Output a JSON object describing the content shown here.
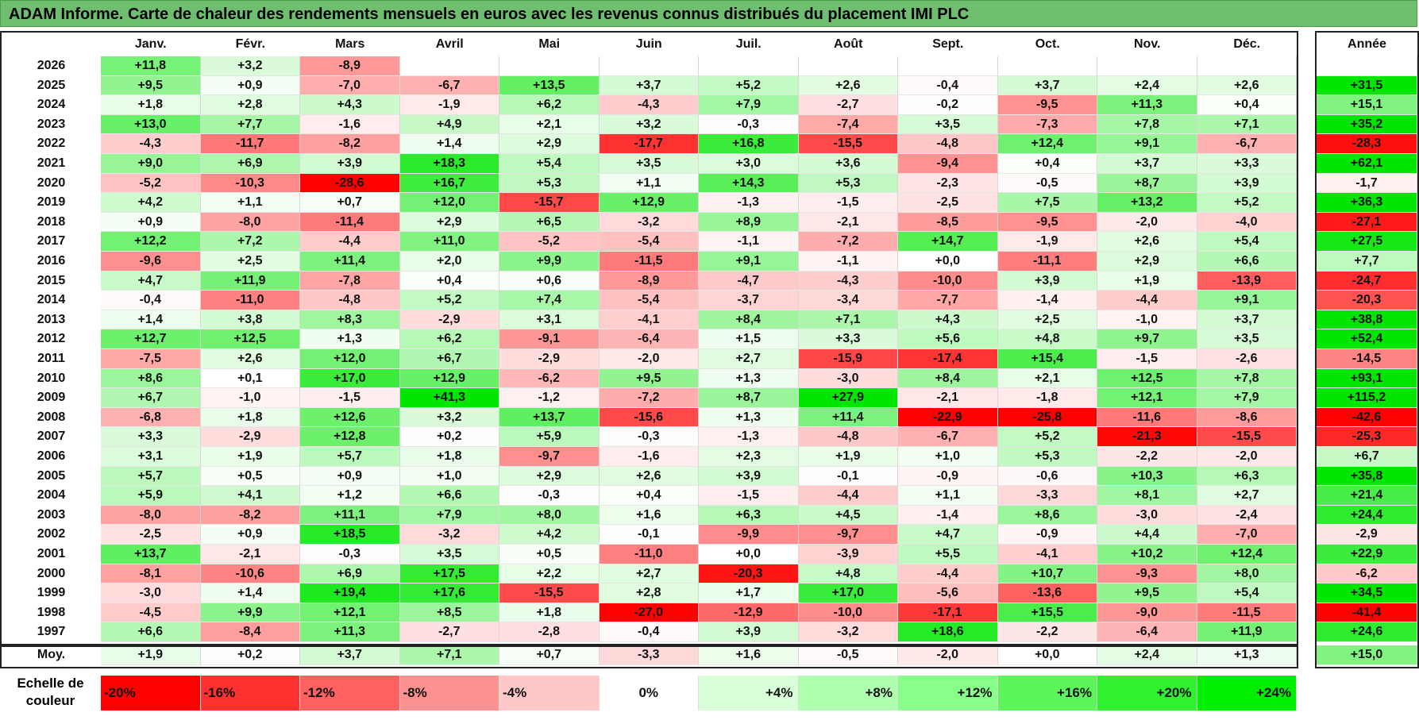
{
  "title": "ADAM Informe. Carte de chaleur des rendements mensuels en euros avec les revenus connus distribués du placement IMI PLC",
  "chart_data": {
    "type": "heatmap",
    "columns": [
      "Janv.",
      "Févr.",
      "Mars",
      "Avril",
      "Mai",
      "Juin",
      "Juil.",
      "Août",
      "Sept.",
      "Oct.",
      "Nov.",
      "Déc."
    ],
    "year_label": "Année",
    "rows": [
      {
        "year": "2026",
        "values": [
          "+11,8",
          "+3,2",
          "-8,9",
          "",
          "",
          "",
          "",
          "",
          "",
          "",
          "",
          ""
        ],
        "annual": ""
      },
      {
        "year": "2025",
        "values": [
          "+9,5",
          "+0,9",
          "-7,0",
          "-6,7",
          "+13,5",
          "+3,7",
          "+5,2",
          "+2,6",
          "-0,4",
          "+3,7",
          "+2,4",
          "+2,6"
        ],
        "annual": "+31,5"
      },
      {
        "year": "2024",
        "values": [
          "+1,8",
          "+2,8",
          "+4,3",
          "-1,9",
          "+6,2",
          "-4,3",
          "+7,9",
          "-2,7",
          "-0,2",
          "-9,5",
          "+11,3",
          "+0,4"
        ],
        "annual": "+15,1"
      },
      {
        "year": "2023",
        "values": [
          "+13,0",
          "+7,7",
          "-1,6",
          "+4,9",
          "+2,1",
          "+3,2",
          "-0,3",
          "-7,4",
          "+3,5",
          "-7,3",
          "+7,8",
          "+7,1"
        ],
        "annual": "+35,2"
      },
      {
        "year": "2022",
        "values": [
          "-4,3",
          "-11,7",
          "-8,2",
          "+1,4",
          "+2,9",
          "-17,7",
          "+16,8",
          "-15,5",
          "-4,8",
          "+12,4",
          "+9,1",
          "-6,7"
        ],
        "annual": "-28,3"
      },
      {
        "year": "2021",
        "values": [
          "+9,0",
          "+6,9",
          "+3,9",
          "+18,3",
          "+5,4",
          "+3,5",
          "+3,0",
          "+3,6",
          "-9,4",
          "+0,4",
          "+3,7",
          "+3,3"
        ],
        "annual": "+62,1"
      },
      {
        "year": "2020",
        "values": [
          "-5,2",
          "-10,3",
          "-28,6",
          "+16,7",
          "+5,3",
          "+1,1",
          "+14,3",
          "+5,3",
          "-2,3",
          "-0,5",
          "+8,7",
          "+3,9"
        ],
        "annual": "-1,7"
      },
      {
        "year": "2019",
        "values": [
          "+4,2",
          "+1,1",
          "+0,7",
          "+12,0",
          "-15,7",
          "+12,9",
          "-1,3",
          "-1,5",
          "-2,5",
          "+7,5",
          "+13,2",
          "+5,2"
        ],
        "annual": "+36,3"
      },
      {
        "year": "2018",
        "values": [
          "+0,9",
          "-8,0",
          "-11,4",
          "+2,9",
          "+6,5",
          "-3,2",
          "+8,9",
          "-2,1",
          "-8,5",
          "-9,5",
          "-2,0",
          "-4,0"
        ],
        "annual": "-27,1"
      },
      {
        "year": "2017",
        "values": [
          "+12,2",
          "+7,2",
          "-4,4",
          "+11,0",
          "-5,2",
          "-5,4",
          "-1,1",
          "-7,2",
          "+14,7",
          "-1,9",
          "+2,6",
          "+5,4"
        ],
        "annual": "+27,5"
      },
      {
        "year": "2016",
        "values": [
          "-9,6",
          "+2,5",
          "+11,4",
          "+2,0",
          "+9,9",
          "-11,5",
          "+9,1",
          "-1,1",
          "+0,0",
          "-11,1",
          "+2,9",
          "+6,6"
        ],
        "annual": "+7,7"
      },
      {
        "year": "2015",
        "values": [
          "+4,7",
          "+11,9",
          "-7,8",
          "+0,4",
          "+0,6",
          "-8,9",
          "-4,7",
          "-4,3",
          "-10,0",
          "+3,9",
          "+1,9",
          "-13,9"
        ],
        "annual": "-24,7"
      },
      {
        "year": "2014",
        "values": [
          "-0,4",
          "-11,0",
          "-4,8",
          "+5,2",
          "+7,4",
          "-5,4",
          "-3,7",
          "-3,4",
          "-7,7",
          "-1,4",
          "-4,4",
          "+9,1"
        ],
        "annual": "-20,3"
      },
      {
        "year": "2013",
        "values": [
          "+1,4",
          "+3,8",
          "+8,3",
          "-2,9",
          "+3,1",
          "-4,1",
          "+8,4",
          "+7,1",
          "+4,3",
          "+2,5",
          "-1,0",
          "+3,7"
        ],
        "annual": "+38,8"
      },
      {
        "year": "2012",
        "values": [
          "+12,7",
          "+12,5",
          "+1,3",
          "+6,2",
          "-9,1",
          "-6,4",
          "+1,5",
          "+3,3",
          "+5,6",
          "+4,8",
          "+9,7",
          "+3,5"
        ],
        "annual": "+52,4"
      },
      {
        "year": "2011",
        "values": [
          "-7,5",
          "+2,6",
          "+12,0",
          "+6,7",
          "-2,9",
          "-2,0",
          "+2,7",
          "-15,9",
          "-17,4",
          "+15,4",
          "-1,5",
          "-2,6"
        ],
        "annual": "-14,5"
      },
      {
        "year": "2010",
        "values": [
          "+8,6",
          "+0,1",
          "+17,0",
          "+12,9",
          "-6,2",
          "+9,5",
          "+1,3",
          "-3,0",
          "+8,4",
          "+2,1",
          "+12,5",
          "+7,8"
        ],
        "annual": "+93,1"
      },
      {
        "year": "2009",
        "values": [
          "+6,7",
          "-1,0",
          "-1,5",
          "+41,3",
          "-1,2",
          "-7,2",
          "+8,7",
          "+27,9",
          "-2,1",
          "-1,8",
          "+12,1",
          "+7,9"
        ],
        "annual": "+115,2"
      },
      {
        "year": "2008",
        "values": [
          "-6,8",
          "+1,8",
          "+12,6",
          "+3,2",
          "+13,7",
          "-15,6",
          "+1,3",
          "+11,4",
          "-22,9",
          "-25,8",
          "-11,6",
          "-8,6"
        ],
        "annual": "-42,6"
      },
      {
        "year": "2007",
        "values": [
          "+3,3",
          "-2,9",
          "+12,8",
          "+0,2",
          "+5,9",
          "-0,3",
          "-1,3",
          "-4,8",
          "-6,7",
          "+5,2",
          "-21,3",
          "-15,5"
        ],
        "annual": "-25,3"
      },
      {
        "year": "2006",
        "values": [
          "+3,1",
          "+1,9",
          "+5,7",
          "+1,8",
          "-9,7",
          "-1,6",
          "+2,3",
          "+1,9",
          "+1,0",
          "+5,3",
          "-2,2",
          "-2,0"
        ],
        "annual": "+6,7"
      },
      {
        "year": "2005",
        "values": [
          "+5,7",
          "+0,5",
          "+0,9",
          "+1,0",
          "+2,9",
          "+2,6",
          "+3,9",
          "-0,1",
          "-0,9",
          "-0,6",
          "+10,3",
          "+6,3"
        ],
        "annual": "+35,8"
      },
      {
        "year": "2004",
        "values": [
          "+5,9",
          "+4,1",
          "+1,2",
          "+6,6",
          "-0,3",
          "+0,4",
          "-1,5",
          "-4,4",
          "+1,1",
          "-3,3",
          "+8,1",
          "+2,7"
        ],
        "annual": "+21,4"
      },
      {
        "year": "2003",
        "values": [
          "-8,0",
          "-8,2",
          "+11,1",
          "+7,9",
          "+8,0",
          "+1,6",
          "+6,3",
          "+4,5",
          "-1,4",
          "+8,6",
          "-3,0",
          "-2,4"
        ],
        "annual": "+24,4"
      },
      {
        "year": "2002",
        "values": [
          "-2,5",
          "+0,9",
          "+18,5",
          "-3,2",
          "+4,2",
          "-0,1",
          "-9,9",
          "-9,7",
          "+4,7",
          "-0,9",
          "+4,4",
          "-7,0"
        ],
        "annual": "-2,9"
      },
      {
        "year": "2001",
        "values": [
          "+13,7",
          "-2,1",
          "-0,3",
          "+3,5",
          "+0,5",
          "-11,0",
          "+0,0",
          "-3,9",
          "+5,5",
          "-4,1",
          "+10,2",
          "+12,4"
        ],
        "annual": "+22,9"
      },
      {
        "year": "2000",
        "values": [
          "-8,1",
          "-10,6",
          "+6,9",
          "+17,5",
          "+2,2",
          "+2,7",
          "-20,3",
          "+4,8",
          "-4,4",
          "+10,7",
          "-9,3",
          "+8,0"
        ],
        "annual": "-6,2"
      },
      {
        "year": "1999",
        "values": [
          "-3,0",
          "+1,4",
          "+19,4",
          "+17,6",
          "-15,5",
          "+2,8",
          "+1,7",
          "+17,0",
          "-5,6",
          "-13,6",
          "+9,5",
          "+5,4"
        ],
        "annual": "+34,5"
      },
      {
        "year": "1998",
        "values": [
          "-4,5",
          "+9,9",
          "+12,1",
          "+8,5",
          "+1,8",
          "-27,0",
          "-12,9",
          "-10,0",
          "-17,1",
          "+15,5",
          "-9,0",
          "-11,5"
        ],
        "annual": "-41,4"
      },
      {
        "year": "1997",
        "values": [
          "+6,6",
          "-8,4",
          "+11,3",
          "-2,7",
          "-2,8",
          "-0,4",
          "+3,9",
          "-3,2",
          "+18,6",
          "-2,2",
          "-6,4",
          "+11,9"
        ],
        "annual": "+24,6"
      }
    ],
    "average": {
      "label": "Moy.",
      "values": [
        "+1,9",
        "+0,2",
        "+3,7",
        "+7,1",
        "+0,7",
        "-3,3",
        "+1,6",
        "-0,5",
        "-2,0",
        "+0,0",
        "+2,4",
        "+1,3"
      ],
      "annual": "+15,0"
    },
    "scale": {
      "label_line1": "Echelle de",
      "label_line2": "couleur",
      "stops": [
        "-20%",
        "-16%",
        "-12%",
        "-8%",
        "-4%",
        "0%",
        "+4%",
        "+8%",
        "+12%",
        "+16%",
        "+20%",
        "+24%"
      ],
      "colors": [
        "#ff0000",
        "#ff3030",
        "#ff6060",
        "#ff9090",
        "#ffc8c8",
        "#ffffff",
        "#d8ffd8",
        "#b0ffb0",
        "#88ff88",
        "#5cf55c",
        "#30f030",
        "#00ee00"
      ]
    }
  }
}
